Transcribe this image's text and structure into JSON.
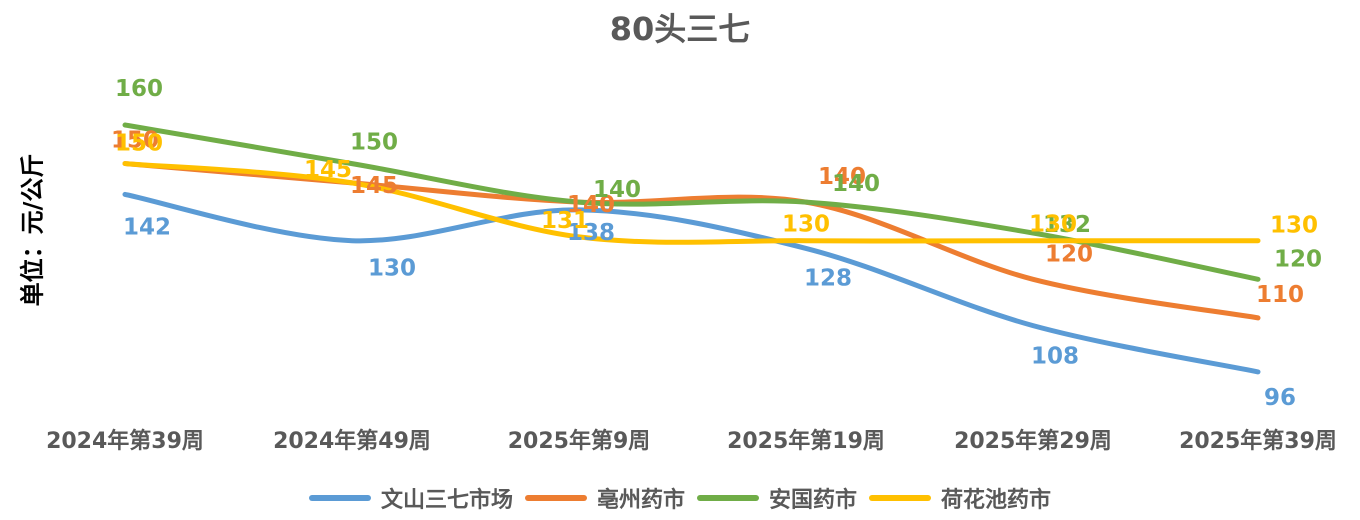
{
  "chart_data": {
    "type": "line",
    "title": "80头三七",
    "ylabel": "单位：元/公斤",
    "xlabel": "",
    "categories": [
      "2024年第39周",
      "2024年第49周",
      "2025年第9周",
      "2025年第19周",
      "2025年第29周",
      "2025年第39周"
    ],
    "ylim": [
      90,
      160
    ],
    "grid": false,
    "smooth": true,
    "legend_position": "bottom",
    "series": [
      {
        "name": "文山三七市场",
        "color": "#5B9BD5",
        "values": [
          142,
          130,
          138,
          128,
          108,
          96
        ]
      },
      {
        "name": "亳州药市",
        "color": "#ED7D31",
        "values": [
          150,
          145,
          140,
          140,
          120,
          110
        ]
      },
      {
        "name": "安国药市",
        "color": "#70AD47",
        "values": [
          160,
          150,
          140,
          140,
          132,
          120
        ]
      },
      {
        "name": "荷花池药市",
        "color": "#FFC000",
        "values": [
          150,
          145,
          131,
          130,
          130,
          130
        ]
      }
    ]
  }
}
